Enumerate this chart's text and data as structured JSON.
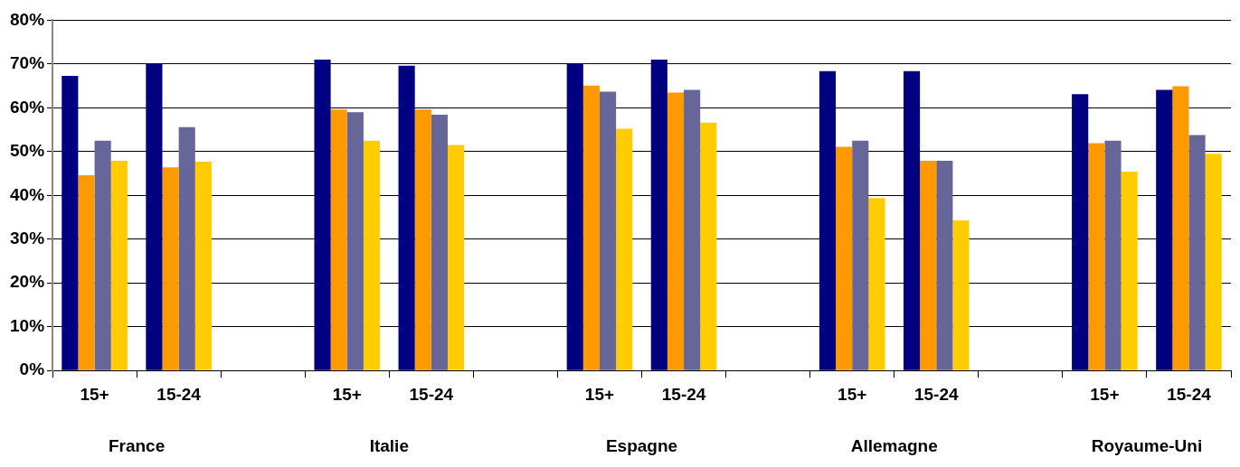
{
  "chart_data": {
    "type": "bar",
    "categories": [
      "15+",
      "15-24",
      null,
      "15+",
      "15-24",
      null,
      "15+",
      "15-24",
      null,
      "15+",
      "15-24",
      null,
      "15+",
      "15-24"
    ],
    "series": [
      {
        "color": "#000080",
        "values": [
          67.3,
          70.2,
          null,
          71,
          69.6,
          null,
          70,
          71,
          null,
          68.4,
          68.4,
          null,
          63.1,
          64.1
        ]
      },
      {
        "color": "#ff9900",
        "values": [
          44.6,
          46.4,
          null,
          59.6,
          59.6,
          null,
          65.1,
          63.5,
          null,
          51.1,
          47.9,
          null,
          51.9,
          64.9
        ]
      },
      {
        "color": "#666699",
        "values": [
          52.5,
          55.6,
          null,
          59,
          58.4,
          null,
          63.7,
          64.1,
          null,
          52.5,
          47.9,
          null,
          52.5,
          53.8
        ]
      },
      {
        "color": "#ffcc00",
        "values": [
          47.9,
          47.7,
          null,
          52.5,
          51.5,
          null,
          55.2,
          56.6,
          null,
          39.4,
          34.3,
          null,
          45.4,
          49.5
        ]
      }
    ],
    "annotations": [
      "France",
      "Italie",
      "Espagne",
      "Allemagne",
      "Royaume-Uni"
    ],
    "ylim": [
      0,
      80
    ],
    "yticks": [
      {
        "value": 0,
        "label": "0%"
      },
      {
        "value": 10,
        "label": "10%"
      },
      {
        "value": 20,
        "label": "20%"
      },
      {
        "value": 30,
        "label": "30%"
      },
      {
        "value": 40,
        "label": "40%"
      },
      {
        "value": 50,
        "label": "50%"
      },
      {
        "value": 60,
        "label": "60%"
      },
      {
        "value": 70,
        "label": "70%"
      },
      {
        "value": 80,
        "label": "80%"
      }
    ],
    "grid": "y",
    "legend": false
  }
}
